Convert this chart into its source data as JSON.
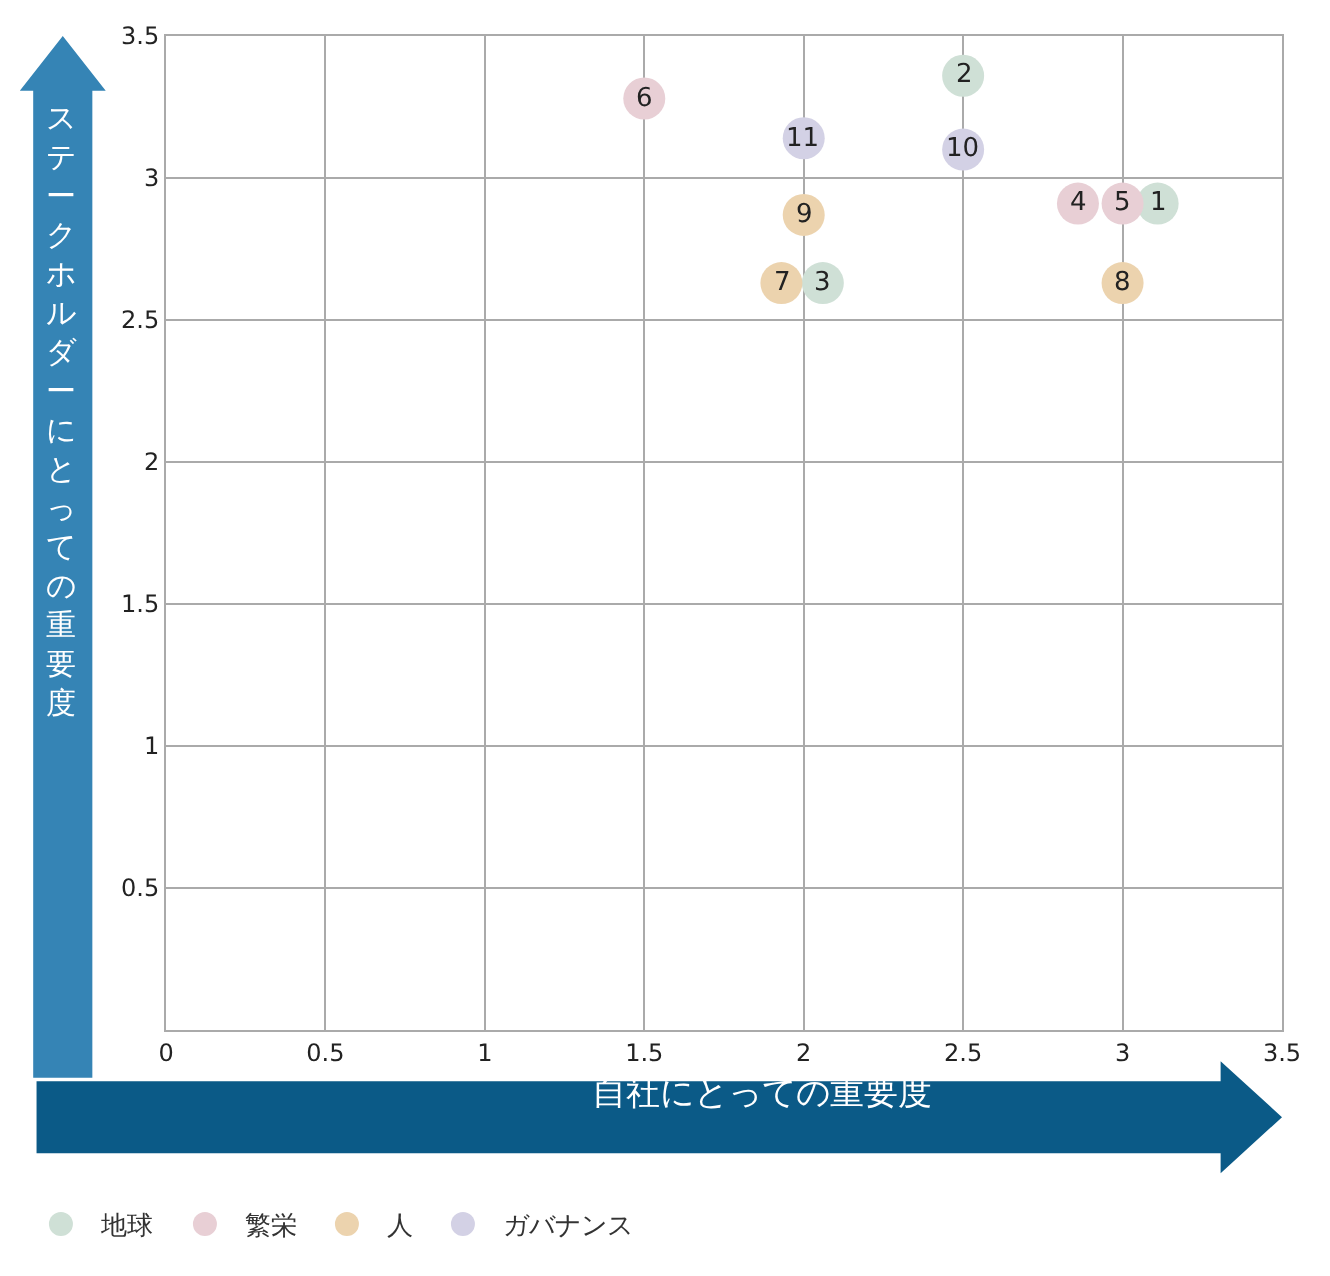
{
  "chart_data": {
    "type": "scatter",
    "xlabel": "自社にとっての重要度",
    "ylabel": "ステークホルダーにとっての重要度",
    "xlim": [
      0,
      3.5
    ],
    "xticks": [
      0,
      0.5,
      1,
      1.5,
      2,
      2.5,
      3,
      3.5
    ],
    "ylim": [
      0,
      3.5
    ],
    "yticks": [
      0.5,
      1,
      1.5,
      2,
      2.5,
      3,
      3.5
    ],
    "grid": true,
    "legend": "bottom left",
    "marker": "circle",
    "series": [
      {
        "name": "地球",
        "color": "#cfe0d6",
        "x": [
          3.11,
          2.5,
          2.06
        ],
        "values": [
          2.91,
          3.36,
          2.63
        ]
      },
      {
        "name": "繁栄",
        "color": "#e8cfd5",
        "x": [
          2.86,
          3.0,
          1.5
        ],
        "values": [
          2.91,
          2.91,
          3.28
        ]
      },
      {
        "name": "人",
        "color": "#ecd3ae",
        "x": [
          1.93,
          3.0,
          2.0
        ],
        "values": [
          2.63,
          2.63,
          2.87
        ]
      },
      {
        "name": "ガバナンス",
        "color": "#d3d1e5",
        "x": [
          2.5,
          2.0
        ],
        "values": [
          3.1,
          3.14
        ]
      }
    ],
    "annotations": [
      {
        "text": "1",
        "x": 3.11,
        "y": 2.91
      },
      {
        "text": "2",
        "x": 2.5,
        "y": 3.36
      },
      {
        "text": "3",
        "x": 2.06,
        "y": 2.63
      },
      {
        "text": "4",
        "x": 2.86,
        "y": 2.91
      },
      {
        "text": "5",
        "x": 3.0,
        "y": 2.91
      },
      {
        "text": "6",
        "x": 1.5,
        "y": 3.28
      },
      {
        "text": "7",
        "x": 1.93,
        "y": 2.63
      },
      {
        "text": "8",
        "x": 3.0,
        "y": 2.63
      },
      {
        "text": "9",
        "x": 2.0,
        "y": 2.87
      },
      {
        "text": "10",
        "x": 2.5,
        "y": 3.1
      },
      {
        "text": "11",
        "x": 2.0,
        "y": 3.14
      }
    ]
  }
}
